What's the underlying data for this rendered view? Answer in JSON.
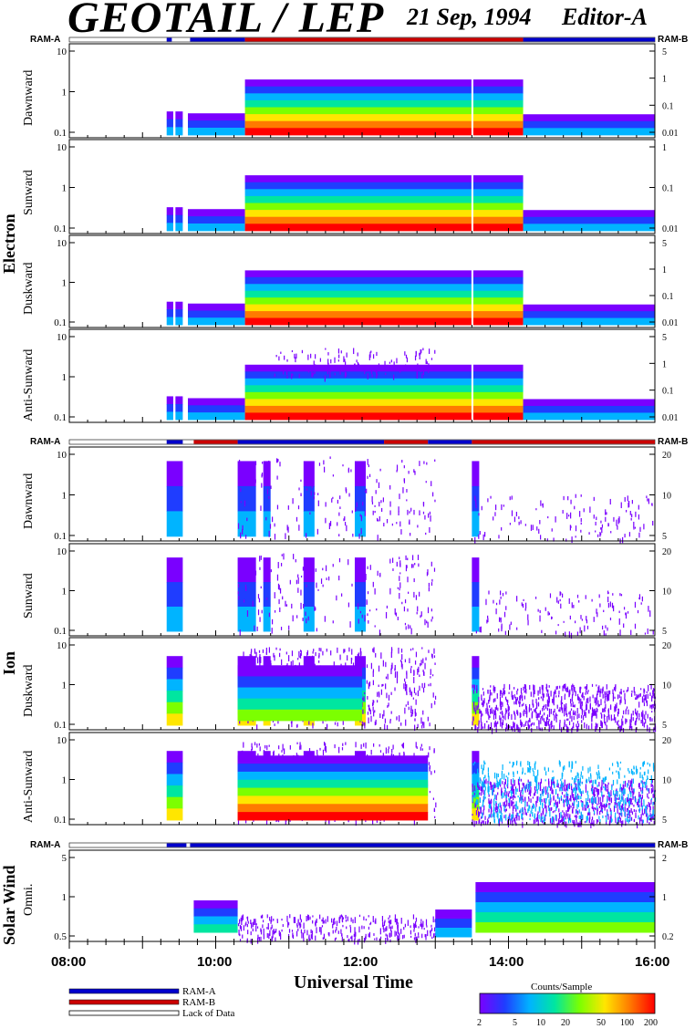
{
  "header": {
    "title": "GEOTAIL / LEP",
    "date": "21 Sep, 1994",
    "editor": "Editor-A"
  },
  "ram_labels": {
    "left": "RAM-A",
    "right": "RAM-B"
  },
  "groups": {
    "electron": "Electron",
    "ion": "Ion",
    "solar_wind": "Solar Wind"
  },
  "x_axis": {
    "title": "Universal Time",
    "ticks": [
      "08:00",
      "10:00",
      "12:00",
      "14:00",
      "16:00"
    ]
  },
  "legend": {
    "ram_a": "RAM-A",
    "ram_b": "RAM-B",
    "lack": "Lack of Data"
  },
  "colorbar": {
    "title": "Counts/Sample",
    "ticks": [
      "2",
      "5",
      "10",
      "20",
      "50",
      "100",
      "200"
    ]
  },
  "colors": {
    "ram_a": "#0000cc",
    "ram_b": "#cc0000"
  },
  "chart_data": {
    "type": "heatmap",
    "x_range_hours": [
      8,
      16
    ],
    "panels": [
      {
        "group": "Electron",
        "label": "Dawnward",
        "left_ticks": [
          "10",
          "1",
          "0.1"
        ],
        "right_ticks": [
          "5",
          "1",
          "0.1",
          "0.01"
        ]
      },
      {
        "group": "Electron",
        "label": "Sunward",
        "left_ticks": [
          "10",
          "1",
          "0.1"
        ],
        "right_ticks": [
          "1",
          "0.1",
          "0.01"
        ]
      },
      {
        "group": "Electron",
        "label": "Duskward",
        "left_ticks": [
          "10",
          "1",
          "0.1"
        ],
        "right_ticks": [
          "5",
          "1",
          "0.1",
          "0.01"
        ]
      },
      {
        "group": "Electron",
        "label": "Anti-Sunward",
        "left_ticks": [
          "10",
          "1",
          "0.1"
        ],
        "right_ticks": [
          "5",
          "1",
          "0.1",
          "0.01"
        ]
      },
      {
        "group": "Ion",
        "label": "Dawnward",
        "left_ticks": [
          "10",
          "1",
          "0.1"
        ],
        "right_ticks": [
          "20",
          "10",
          "5"
        ]
      },
      {
        "group": "Ion",
        "label": "Sunward",
        "left_ticks": [
          "10",
          "1",
          "0.1"
        ],
        "right_ticks": [
          "20",
          "10",
          "5"
        ]
      },
      {
        "group": "Ion",
        "label": "Duskward",
        "left_ticks": [
          "10",
          "1",
          "0.1"
        ],
        "right_ticks": [
          "20",
          "10",
          "5"
        ]
      },
      {
        "group": "Ion",
        "label": "Anti-Sunward",
        "left_ticks": [
          "10",
          "1",
          "0.1"
        ],
        "right_ticks": [
          "20",
          "10",
          "5"
        ]
      },
      {
        "group": "Solar Wind",
        "label": "Omni.",
        "left_ticks": [
          "5",
          "1",
          "0.5"
        ],
        "right_ticks": [
          "2",
          "1",
          "0.2"
        ]
      }
    ],
    "ram_segments_electron": [
      {
        "from": 8.0,
        "to": 9.33,
        "mode": "none"
      },
      {
        "from": 9.33,
        "to": 9.4,
        "mode": "A"
      },
      {
        "from": 9.65,
        "to": 10.4,
        "mode": "A"
      },
      {
        "from": 10.4,
        "to": 14.2,
        "mode": "B"
      },
      {
        "from": 14.2,
        "to": 16.0,
        "mode": "A"
      }
    ],
    "ram_segments_ion": [
      {
        "from": 8.0,
        "to": 9.33,
        "mode": "none"
      },
      {
        "from": 9.33,
        "to": 9.55,
        "mode": "A"
      },
      {
        "from": 9.7,
        "to": 10.3,
        "mode": "B"
      },
      {
        "from": 10.3,
        "to": 12.3,
        "mode": "A"
      },
      {
        "from": 12.3,
        "to": 12.9,
        "mode": "B"
      },
      {
        "from": 12.9,
        "to": 13.5,
        "mode": "A"
      },
      {
        "from": 13.5,
        "to": 16.0,
        "mode": "B"
      }
    ],
    "ram_segments_solar": [
      {
        "from": 8.0,
        "to": 9.33,
        "mode": "none"
      },
      {
        "from": 9.33,
        "to": 9.6,
        "mode": "A"
      },
      {
        "from": 9.65,
        "to": 16.0,
        "mode": "A"
      }
    ]
  }
}
